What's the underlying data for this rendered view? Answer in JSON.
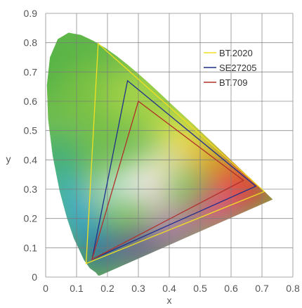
{
  "chart_data": {
    "type": "scatter",
    "title": "",
    "xlabel": "x",
    "ylabel": "y",
    "xlim": [
      0,
      0.8
    ],
    "ylim": [
      0,
      0.9
    ],
    "x_ticks": [
      "0",
      "0.1",
      "0.2",
      "0.3",
      "0.4",
      "0.5",
      "0.6",
      "0.7",
      "0.8"
    ],
    "y_ticks": [
      "0",
      "0.1",
      "0.2",
      "0.3",
      "0.4",
      "0.5",
      "0.6",
      "0.7",
      "0.8",
      "0.9"
    ],
    "grid": true,
    "legend_position": "top-right",
    "spectral_locus": [
      [
        0.175,
        0.005
      ],
      [
        0.17,
        0.005
      ],
      [
        0.163,
        0.015
      ],
      [
        0.143,
        0.03
      ],
      [
        0.124,
        0.058
      ],
      [
        0.091,
        0.133
      ],
      [
        0.069,
        0.201
      ],
      [
        0.045,
        0.295
      ],
      [
        0.023,
        0.413
      ],
      [
        0.008,
        0.538
      ],
      [
        0.004,
        0.655
      ],
      [
        0.014,
        0.75
      ],
      [
        0.039,
        0.812
      ],
      [
        0.074,
        0.834
      ],
      [
        0.114,
        0.826
      ],
      [
        0.155,
        0.806
      ],
      [
        0.193,
        0.782
      ],
      [
        0.23,
        0.754
      ],
      [
        0.266,
        0.724
      ],
      [
        0.302,
        0.692
      ],
      [
        0.337,
        0.659
      ],
      [
        0.373,
        0.624
      ],
      [
        0.408,
        0.589
      ],
      [
        0.444,
        0.554
      ],
      [
        0.479,
        0.52
      ],
      [
        0.512,
        0.487
      ],
      [
        0.544,
        0.455
      ],
      [
        0.575,
        0.424
      ],
      [
        0.603,
        0.396
      ],
      [
        0.627,
        0.372
      ],
      [
        0.648,
        0.351
      ],
      [
        0.666,
        0.334
      ],
      [
        0.68,
        0.32
      ],
      [
        0.692,
        0.308
      ],
      [
        0.701,
        0.299
      ],
      [
        0.708,
        0.292
      ],
      [
        0.714,
        0.286
      ],
      [
        0.718,
        0.282
      ],
      [
        0.722,
        0.278
      ],
      [
        0.735,
        0.265
      ]
    ],
    "series": [
      {
        "name": "BT.2020",
        "color": "#f2e021",
        "points": [
          [
            0.708,
            0.292
          ],
          [
            0.17,
            0.797
          ],
          [
            0.131,
            0.046
          ]
        ]
      },
      {
        "name": "SE27205",
        "color": "#1f2f8c",
        "points": [
          [
            0.68,
            0.31
          ],
          [
            0.265,
            0.67
          ],
          [
            0.15,
            0.06
          ]
        ]
      },
      {
        "name": "BT.709",
        "color": "#b0302a",
        "points": [
          [
            0.64,
            0.33
          ],
          [
            0.3,
            0.6
          ],
          [
            0.15,
            0.06
          ]
        ]
      }
    ]
  }
}
